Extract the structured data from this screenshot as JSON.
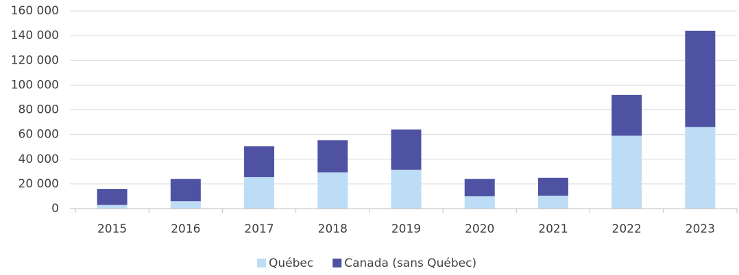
{
  "chart_data": {
    "type": "stacked_bar",
    "categories": [
      "2015",
      "2016",
      "2017",
      "2018",
      "2019",
      "2020",
      "2021",
      "2022",
      "2023"
    ],
    "series": [
      {
        "name": "Québec",
        "color": "#bddcf5",
        "values": [
          3000,
          6000,
          25500,
          29300,
          31500,
          10000,
          10500,
          59000,
          66000
        ]
      },
      {
        "name": "Canada (sans Québec)",
        "color": "#4f52a3",
        "values": [
          13000,
          18000,
          25000,
          26000,
          32500,
          14000,
          14500,
          33000,
          78000
        ]
      }
    ],
    "ylim": [
      0,
      160000
    ],
    "yticks": [
      0,
      {
        "value": 20000,
        "label": "20 000"
      },
      {
        "value": 40000,
        "label": "40 000"
      },
      {
        "value": 60000,
        "label": "60 000"
      },
      {
        "value": 80000,
        "label": "80 000"
      },
      {
        "value": 100000,
        "label": "100 000"
      },
      {
        "value": 120000,
        "label": "120 000"
      },
      {
        "value": 140000,
        "label": "140 000"
      },
      {
        "value": 160000,
        "label": "160 000"
      }
    ],
    "grid": true,
    "legend": "bottom"
  }
}
